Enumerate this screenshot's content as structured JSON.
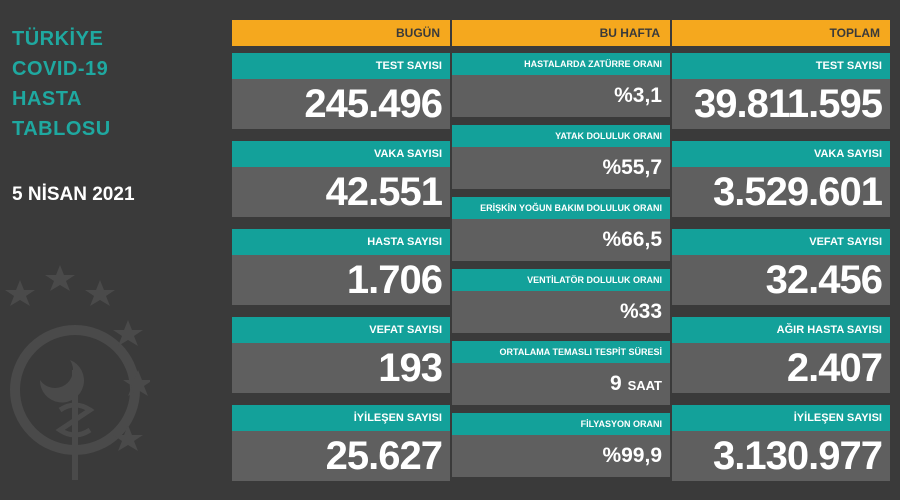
{
  "heading": {
    "line1": "TÜRKİYE",
    "line2": "COVID-19",
    "line3": "HASTA",
    "line4": "TABLOSU"
  },
  "date": "5 NİSAN 2021",
  "columns": {
    "today": {
      "header": "BUGÜN",
      "items": [
        {
          "label": "TEST SAYISI",
          "value": "245.496"
        },
        {
          "label": "VAKA SAYISI",
          "value": "42.551"
        },
        {
          "label": "HASTA SAYISI",
          "value": "1.706"
        },
        {
          "label": "VEFAT SAYISI",
          "value": "193"
        },
        {
          "label": "İYİLEŞEN SAYISI",
          "value": "25.627"
        }
      ]
    },
    "week": {
      "header": "BU HAFTA",
      "items": [
        {
          "label": "HASTALARDA ZATÜRRE ORANI",
          "value": "%3,1"
        },
        {
          "label": "YATAK DOLULUK ORANI",
          "value": "%55,7"
        },
        {
          "label": "ERİŞKİN YOĞUN BAKIM DOLULUK ORANI",
          "value": "%66,5"
        },
        {
          "label": "VENTİLATÖR DOLULUK ORANI",
          "value": "%33"
        },
        {
          "label": "ORTALAMA TEMASLI TESPİT SÜRESİ",
          "value": "9",
          "unit": "SAAT"
        },
        {
          "label": "FİLYASYON ORANI",
          "value": "%99,9"
        }
      ]
    },
    "total": {
      "header": "TOPLAM",
      "items": [
        {
          "label": "TEST SAYISI",
          "value": "39.811.595"
        },
        {
          "label": "VAKA SAYISI",
          "value": "3.529.601"
        },
        {
          "label": "VEFAT SAYISI",
          "value": "32.456"
        },
        {
          "label": "AĞIR HASTA SAYISI",
          "value": "2.407"
        },
        {
          "label": "İYİLEŞEN SAYISI",
          "value": "3.130.977"
        }
      ]
    }
  },
  "colors": {
    "background": "#3a3a3a",
    "header": "#f5a81e",
    "label": "#13a19a",
    "value_bg": "#5f5f5f",
    "title": "#1fa8a0"
  }
}
